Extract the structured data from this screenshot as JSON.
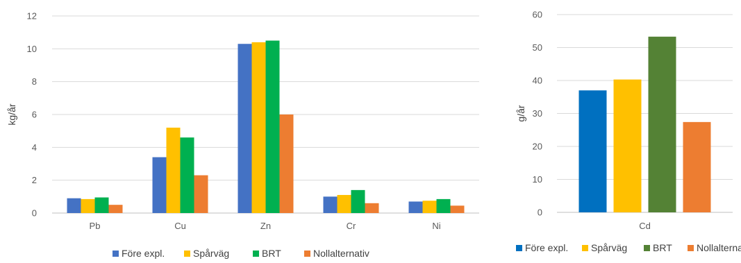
{
  "chart_data": [
    {
      "type": "bar",
      "ylabel": "kg/år",
      "ylim": [
        0,
        12
      ],
      "yticks": [
        "0",
        "2",
        "4",
        "6",
        "8",
        "10",
        "12"
      ],
      "categories": [
        "Pb",
        "Cu",
        "Zn",
        "Cr",
        "Ni"
      ],
      "series": [
        {
          "name": "Före expl.",
          "color": "#4472c4",
          "values": [
            0.9,
            3.4,
            10.3,
            1.0,
            0.7
          ]
        },
        {
          "name": "Spårväg",
          "color": "#ffc000",
          "values": [
            0.85,
            5.2,
            10.4,
            1.1,
            0.75
          ]
        },
        {
          "name": "BRT",
          "color": "#00b050",
          "values": [
            0.95,
            4.6,
            10.5,
            1.4,
            0.85
          ]
        },
        {
          "name": "Nollalternativ",
          "color": "#ed7d31",
          "values": [
            0.5,
            2.3,
            6.0,
            0.6,
            0.45
          ]
        }
      ],
      "grid": true,
      "legend": "bottom"
    },
    {
      "type": "bar",
      "ylabel": "g/år",
      "ylim": [
        0,
        60
      ],
      "yticks": [
        "0",
        "10",
        "20",
        "30",
        "40",
        "50",
        "60"
      ],
      "categories": [
        "Cd"
      ],
      "series": [
        {
          "name": "Före expl.",
          "color": "#0070c0",
          "values": [
            37
          ]
        },
        {
          "name": "Spårväg",
          "color": "#ffc000",
          "values": [
            40.3
          ]
        },
        {
          "name": "BRT",
          "color": "#548235",
          "values": [
            53.3
          ]
        },
        {
          "name": "Nollalternativ",
          "color": "#ed7d31",
          "values": [
            27.4
          ]
        }
      ],
      "grid": true,
      "legend": "bottom"
    }
  ]
}
